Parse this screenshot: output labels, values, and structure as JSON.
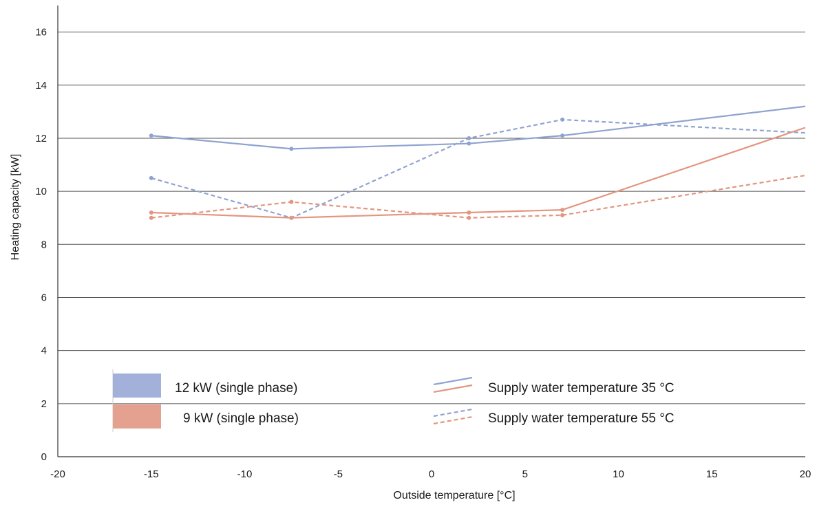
{
  "chart_data": {
    "type": "line",
    "xlabel": "Outside temperature [°C]",
    "ylabel": "Heating capacity [kW]",
    "xlim": [
      -20,
      20
    ],
    "ylim": [
      0,
      17
    ],
    "x_ticks": [
      -20,
      -15,
      -10,
      -5,
      0,
      5,
      10,
      15,
      20
    ],
    "y_ticks": [
      0,
      2,
      4,
      6,
      8,
      10,
      12,
      14,
      16
    ],
    "grid": "horizontal",
    "series": [
      {
        "name": "12 kW (single phase) — Supply water temperature 35 °C",
        "color": "#8fa3d1",
        "dash": "solid",
        "x": [
          -15,
          -7.5,
          2,
          7,
          20
        ],
        "y": [
          12.1,
          11.6,
          11.8,
          12.1,
          13.2
        ],
        "markers": [
          true,
          true,
          true,
          true,
          false
        ]
      },
      {
        "name": "12 kW (single phase) — Supply water temperature 55 °C",
        "color": "#8fa3d1",
        "dash": "dashed",
        "x": [
          -15,
          -7.5,
          2,
          7,
          20
        ],
        "y": [
          10.5,
          9.0,
          12.0,
          12.7,
          12.2
        ],
        "markers": [
          true,
          true,
          true,
          true,
          false
        ]
      },
      {
        "name": "9 kW (single phase) — Supply water temperature 35 °C",
        "color": "#e3957f",
        "dash": "solid",
        "x": [
          -15,
          -7.5,
          2,
          7,
          20
        ],
        "y": [
          9.2,
          9.0,
          9.2,
          9.3,
          12.4
        ],
        "markers": [
          true,
          true,
          true,
          true,
          false
        ]
      },
      {
        "name": "9 kW (single phase) — Supply water temperature 55 °C",
        "color": "#e3957f",
        "dash": "dashed",
        "x": [
          -15,
          -7.5,
          2,
          7,
          20
        ],
        "y": [
          9.0,
          9.6,
          9.0,
          9.1,
          10.6
        ],
        "markers": [
          true,
          true,
          true,
          true,
          false
        ]
      }
    ],
    "legend": {
      "placement": "bottom-inside",
      "colors": [
        {
          "label": "12 kW (single phase)",
          "color": "#a3b1da"
        },
        {
          "label": "9 kW (single phase)",
          "color": "#e4a190"
        }
      ],
      "styles": [
        {
          "label": "Supply water temperature 35 °C",
          "dash": "solid"
        },
        {
          "label": "Supply water temperature 55 °C",
          "dash": "dashed"
        }
      ]
    }
  }
}
